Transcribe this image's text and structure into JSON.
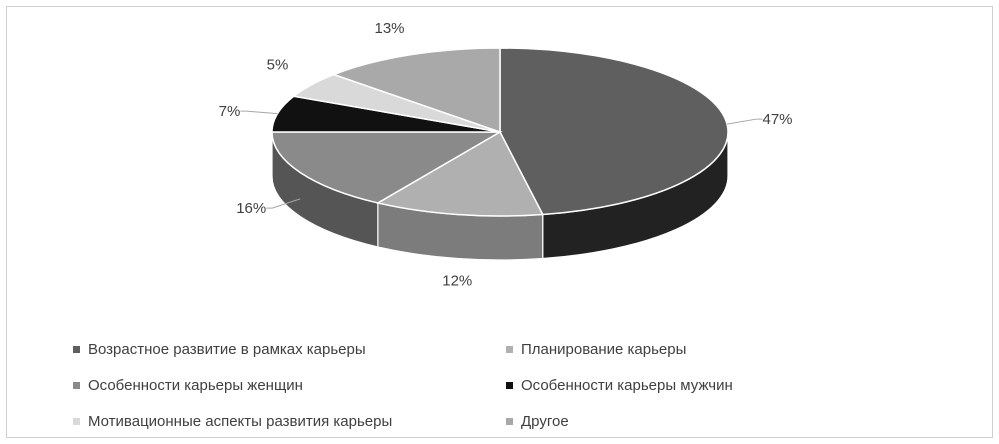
{
  "chart_data": {
    "type": "pie",
    "title": "",
    "categories": [
      "Возрастное развитие в рамках карьеры",
      "Планирование карьеры",
      "Особенности карьеры женщин",
      "Особенности карьеры мужчин",
      "Мотивационные аспекты развития карьеры",
      "Другое"
    ],
    "values": [
      47,
      12,
      16,
      7,
      5,
      13
    ],
    "labels": [
      "47%",
      "12%",
      "16%",
      "7%",
      "5%",
      "13%"
    ],
    "colors": [
      "#5f5f5f",
      "#b0b0b0",
      "#8a8a8a",
      "#111111",
      "#d9d9d9",
      "#a9a9a9"
    ],
    "side_colors": [
      "#222222",
      "#7c7c7c",
      "#555555",
      "#050505",
      "#a0a0a0",
      "#7a7a7a"
    ],
    "style": "3d",
    "legend_position": "bottom"
  }
}
